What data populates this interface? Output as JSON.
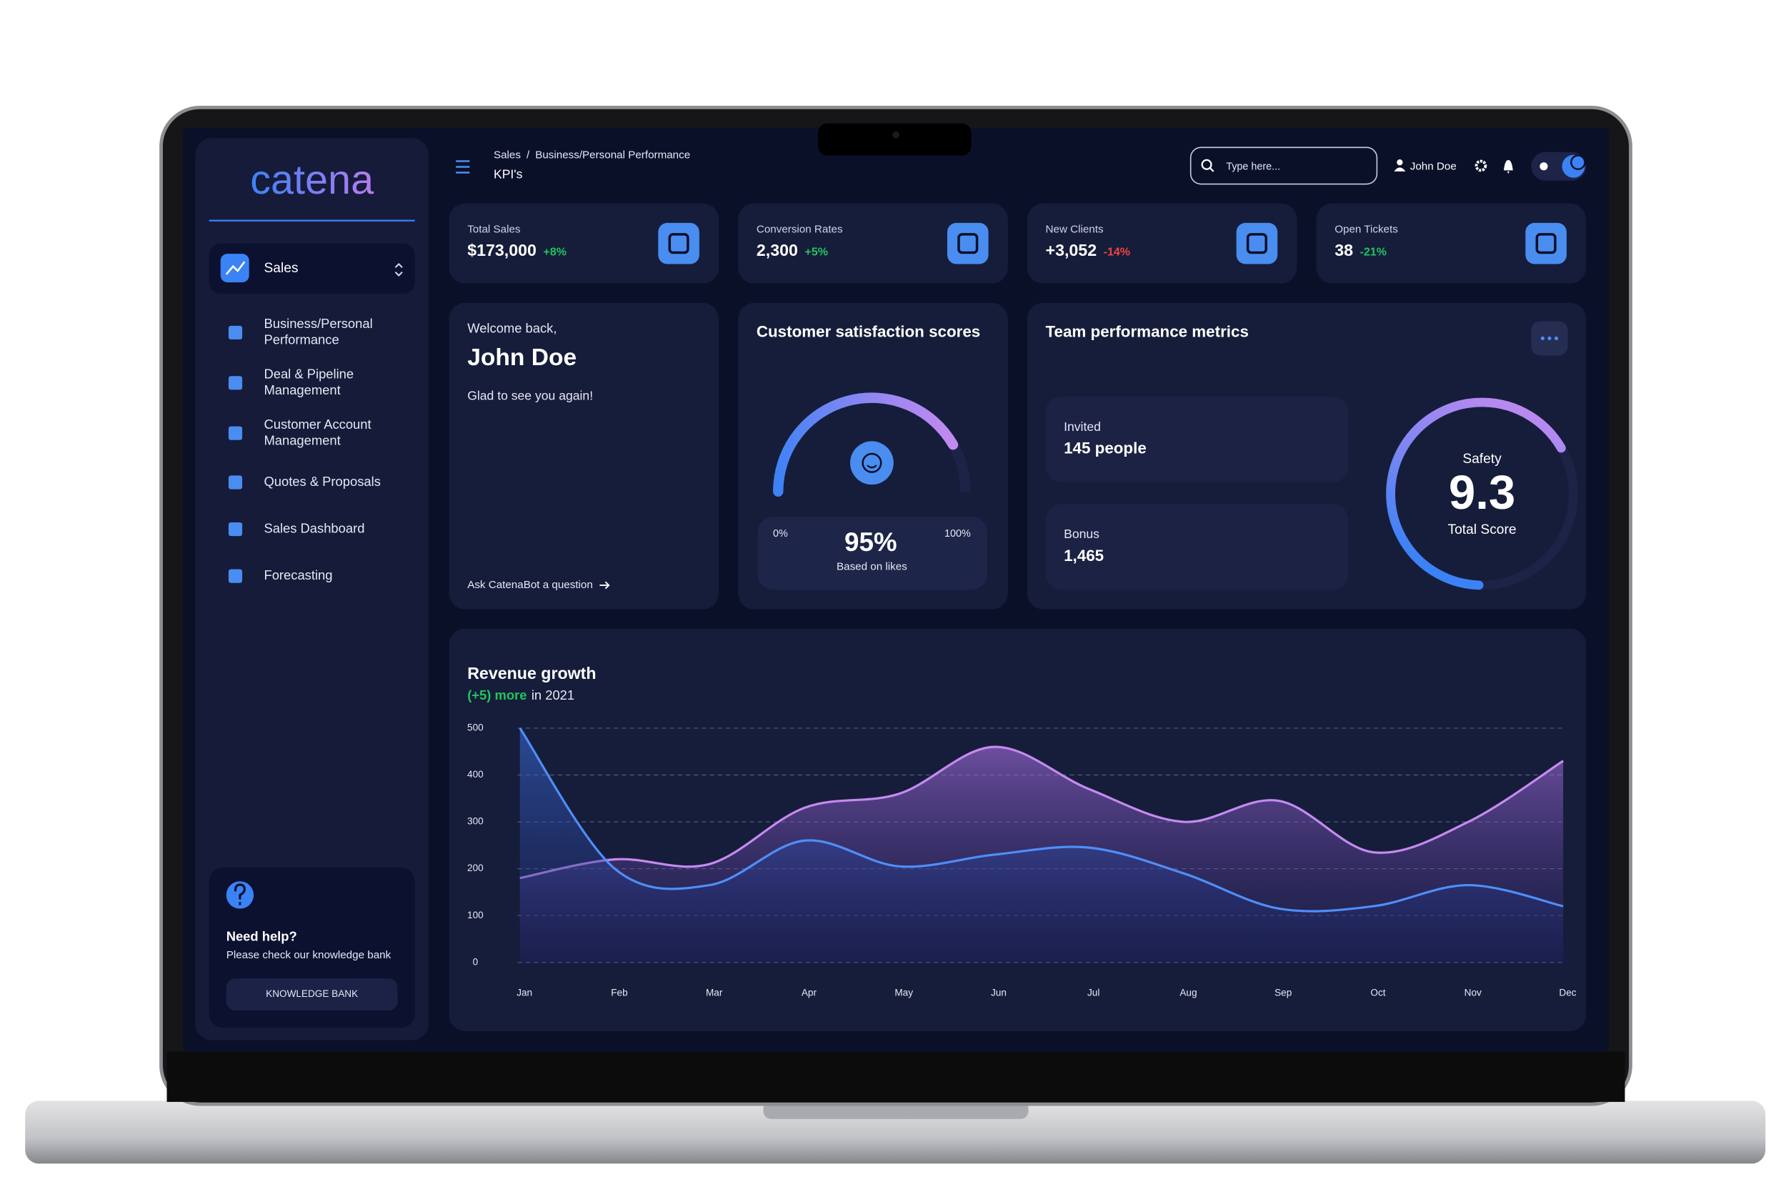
{
  "logo": "catena",
  "header": {
    "breadcrumb": [
      "Sales",
      "/",
      "Business/Personal Performance"
    ],
    "page_title": "KPI's",
    "search_placeholder": "Type here...",
    "user": "John Doe"
  },
  "sidebar": {
    "active": "Sales",
    "items": [
      {
        "lines": [
          "Business/Personal",
          "Performance"
        ]
      },
      {
        "lines": [
          "Deal & Pipeline",
          "Management"
        ]
      },
      {
        "lines": [
          "Customer Account",
          "Management"
        ]
      },
      {
        "lines": [
          "Quotes & Proposals"
        ]
      },
      {
        "lines": [
          "Sales Dashboard"
        ]
      },
      {
        "lines": [
          "Forecasting"
        ]
      }
    ],
    "help": {
      "title": "Need help?",
      "text": "Please check our knowledge bank",
      "button": "KNOWLEDGE BANK"
    }
  },
  "kpis": [
    {
      "label": "Total Sales",
      "value": "$173,000",
      "change": "+8%",
      "change_color": "#22c55e"
    },
    {
      "label": "Conversion Rates",
      "value": "2,300",
      "change": "+5%",
      "change_color": "#22c55e"
    },
    {
      "label": "New Clients",
      "value": "+3,052",
      "change": "-14%",
      "change_color": "#ef4444"
    },
    {
      "label": "Open Tickets",
      "value": "38",
      "change": "-21%",
      "change_color": "#22c55e"
    }
  ],
  "welcome": {
    "greeting": "Welcome back,",
    "name": "John Doe",
    "message": "Glad to see you again!",
    "link": "Ask CatenaBot a question"
  },
  "satisfaction": {
    "title": "Customer satisfaction scores",
    "min_label": "0%",
    "max_label": "100%",
    "value": "95%",
    "caption": "Based on likes"
  },
  "team": {
    "title": "Team performance metrics",
    "stats": [
      {
        "label": "Invited",
        "value": "145 people"
      },
      {
        "label": "Bonus",
        "value": "1,465"
      }
    ],
    "score_label": "Safety",
    "score": "9.3",
    "score_caption": "Total Score"
  },
  "chart_data": {
    "type": "area",
    "title": "Revenue growth",
    "highlight": "(+5) more",
    "subtitle": "in 2021",
    "categories": [
      "Jan",
      "Feb",
      "Mar",
      "Apr",
      "May",
      "Jun",
      "Jul",
      "Aug",
      "Sep",
      "Oct",
      "Nov",
      "Dec"
    ],
    "series": [
      {
        "color": "#c58af0",
        "values": [
          180,
          220,
          210,
          330,
          360,
          460,
          370,
          300,
          345,
          235,
          300,
          430
        ]
      },
      {
        "color": "#4f8ef7",
        "values": [
          500,
          200,
          165,
          260,
          205,
          230,
          245,
          190,
          115,
          120,
          165,
          120
        ]
      }
    ],
    "ylim": [
      0,
      500
    ],
    "yticks": [
      0,
      100,
      200,
      300,
      400,
      500
    ],
    "grid": true
  }
}
